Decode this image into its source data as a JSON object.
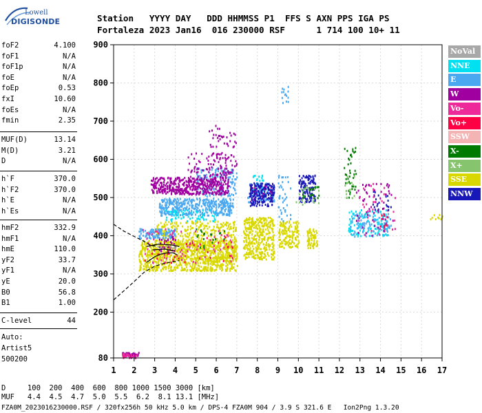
{
  "logo": {
    "line1": "Lowell",
    "line2": "DIGISONDE"
  },
  "header": {
    "columns": "Station   YYYY DAY   DDD HHMMSS P1  FFS S AXN PPS IGA PS",
    "values": "Fortaleza 2023 Jan16  016 230000 RSF      1 714 100 10+ 11"
  },
  "params_group1": [
    {
      "label": "foF2",
      "value": "4.100"
    },
    {
      "label": "foF1",
      "value": "N/A"
    },
    {
      "label": "foF1p",
      "value": "N/A"
    },
    {
      "label": "foE",
      "value": "N/A"
    },
    {
      "label": "foEp",
      "value": "0.53"
    },
    {
      "label": "fxI",
      "value": "10.60"
    },
    {
      "label": "foEs",
      "value": "N/A"
    },
    {
      "label": "fmin",
      "value": "2.35"
    }
  ],
  "params_group2": [
    {
      "label": "MUF(D)",
      "value": "13.14"
    },
    {
      "label": "M(D)",
      "value": "3.21"
    },
    {
      "label": "D",
      "value": "N/A"
    }
  ],
  "params_group3": [
    {
      "label": "h`F",
      "value": "370.0"
    },
    {
      "label": "h`F2",
      "value": "370.0"
    },
    {
      "label": "h`E",
      "value": "N/A"
    },
    {
      "label": "h`Es",
      "value": "N/A"
    }
  ],
  "params_group4": [
    {
      "label": "hmF2",
      "value": "332.9"
    },
    {
      "label": "hmF1",
      "value": "N/A"
    },
    {
      "label": "hmE",
      "value": "110.0"
    },
    {
      "label": "yF2",
      "value": "33.7"
    },
    {
      "label": "yF1",
      "value": "N/A"
    },
    {
      "label": "yE",
      "value": "20.0"
    },
    {
      "label": "B0",
      "value": "56.8"
    },
    {
      "label": "B1",
      "value": "1.00"
    }
  ],
  "params_group5": [
    {
      "label": "C-level",
      "value": "44"
    }
  ],
  "auto": {
    "line1": "Auto:",
    "line2": "Artist5",
    "line3": "500200"
  },
  "legend": [
    {
      "label": "NoVal",
      "color": "#a8a8a8"
    },
    {
      "label": "NNE",
      "color": "#00e0f0"
    },
    {
      "label": "E",
      "color": "#4aa8f0"
    },
    {
      "label": "W",
      "color": "#a000a0"
    },
    {
      "label": "Vo-",
      "color": "#ee2a9a"
    },
    {
      "label": "Vo+",
      "color": "#ff0044"
    },
    {
      "label": "SSW",
      "color": "#f4b4b4"
    },
    {
      "label": "X-",
      "color": "#007a00"
    },
    {
      "label": "X+",
      "color": "#86c46e"
    },
    {
      "label": "SSE",
      "color": "#d8d800"
    },
    {
      "label": "NNW",
      "color": "#1818b8"
    }
  ],
  "legend_text_colors": [
    "#ffffff",
    "#ffffff",
    "#ffffff",
    "#ffffff",
    "#ffffff",
    "#ffffff",
    "#ffffff",
    "#ffffff",
    "#ffffff",
    "#ffffff",
    "#ffffff"
  ],
  "footer": {
    "line1": "D     100  200  400  600  800 1000 1500 3000 [km]",
    "line2": "MUF   4.4  4.5  4.7  5.0  5.5  6.2  8.1 13.1 [MHz]",
    "line3": "FZA0M_2023016230000.RSF / 320fx256h 50 kHz 5.0 km / DPS-4 FZA0M 904 / 3.9 S 321.6 E   Ion2Png 1.3.20"
  },
  "chart_data": {
    "type": "scatter",
    "title": "",
    "xlabel": "",
    "ylabel": "",
    "xlim": [
      1,
      17
    ],
    "ylim": [
      80,
      900
    ],
    "x_ticks": [
      "1",
      "2",
      "3",
      "4",
      "5",
      "6",
      "7",
      "8",
      "9",
      "10",
      "11",
      "12",
      "13",
      "14",
      "15",
      "16",
      "17"
    ],
    "y_ticks": [
      "80",
      "200",
      "300",
      "400",
      "500",
      "600",
      "700",
      "800",
      "900"
    ],
    "x_tick_values": [
      1,
      2,
      3,
      4,
      5,
      6,
      7,
      8,
      9,
      10,
      11,
      12,
      13,
      14,
      15,
      16,
      17
    ],
    "y_tick_values": [
      80,
      200,
      300,
      400,
      500,
      600,
      700,
      800,
      900
    ],
    "grid": "dashed light gray",
    "legend_placement": "right",
    "series": [
      {
        "name": "SSE",
        "color": "#d8d800",
        "clusters": [
          {
            "x": [
              2.2,
              7.0
            ],
            "y": [
              310,
              390
            ],
            "n": 900
          },
          {
            "x": [
              3.0,
              7.0
            ],
            "y": [
              340,
              440
            ],
            "n": 450
          },
          {
            "x": [
              7.3,
              8.8
            ],
            "y": [
              340,
              450
            ],
            "n": 380
          },
          {
            "x": [
              9.0,
              10.0
            ],
            "y": [
              370,
              440
            ],
            "n": 150
          },
          {
            "x": [
              10.4,
              10.9
            ],
            "y": [
              370,
              420
            ],
            "n": 70
          },
          {
            "x": [
              16.4,
              17.0
            ],
            "y": [
              445,
              460
            ],
            "n": 10
          }
        ]
      },
      {
        "name": "E",
        "color": "#4aa8f0",
        "clusters": [
          {
            "x": [
              3.2,
              6.8
            ],
            "y": [
              455,
              500
            ],
            "n": 420
          },
          {
            "x": [
              2.2,
              4.0
            ],
            "y": [
              395,
              420
            ],
            "n": 110
          },
          {
            "x": [
              5.0,
              7.0
            ],
            "y": [
              505,
              580
            ],
            "n": 160
          },
          {
            "x": [
              7.5,
              8.8
            ],
            "y": [
              490,
              540
            ],
            "n": 90
          },
          {
            "x": [
              9.0,
              9.6
            ],
            "y": [
              440,
              560
            ],
            "n": 40
          },
          {
            "x": [
              12.5,
              14.5
            ],
            "y": [
              400,
              460
            ],
            "n": 120
          },
          {
            "x": [
              9.1,
              9.5
            ],
            "y": [
              740,
              800
            ],
            "n": 14
          }
        ]
      },
      {
        "name": "NNE",
        "color": "#00e0f0",
        "clusters": [
          {
            "x": [
              12.4,
              14.3
            ],
            "y": [
              400,
              470
            ],
            "n": 90
          },
          {
            "x": [
              3.5,
              6.0
            ],
            "y": [
              440,
              470
            ],
            "n": 60
          },
          {
            "x": [
              7.7,
              8.3
            ],
            "y": [
              520,
              560
            ],
            "n": 20
          }
        ]
      },
      {
        "name": "W",
        "color": "#a000a0",
        "clusters": [
          {
            "x": [
              2.8,
              6.6
            ],
            "y": [
              510,
              555
            ],
            "n": 430
          },
          {
            "x": [
              4.6,
              6.6
            ],
            "y": [
              530,
              620
            ],
            "n": 100
          },
          {
            "x": [
              5.5,
              7.0
            ],
            "y": [
              560,
              690
            ],
            "n": 70
          },
          {
            "x": [
              1.4,
              2.2
            ],
            "y": [
              82,
              96
            ],
            "n": 50
          },
          {
            "x": [
              7.6,
              8.7
            ],
            "y": [
              490,
              540
            ],
            "n": 40
          },
          {
            "x": [
              12.8,
              14.6
            ],
            "y": [
              400,
              540
            ],
            "n": 60
          },
          {
            "x": [
              3.0,
              4.0
            ],
            "y": [
              360,
              400
            ],
            "n": 30
          }
        ]
      },
      {
        "name": "NNW",
        "color": "#1818b8",
        "clusters": [
          {
            "x": [
              7.6,
              8.8
            ],
            "y": [
              480,
              540
            ],
            "n": 160
          },
          {
            "x": [
              10.0,
              10.8
            ],
            "y": [
              490,
              560
            ],
            "n": 120
          },
          {
            "x": [
              13.6,
              14.5
            ],
            "y": [
              470,
              520
            ],
            "n": 20
          }
        ]
      },
      {
        "name": "Vo-",
        "color": "#ee2a9a",
        "clusters": [
          {
            "x": [
              2.4,
              6.8
            ],
            "y": [
              330,
              420
            ],
            "n": 70
          },
          {
            "x": [
              1.4,
              2.2
            ],
            "y": [
              82,
              94
            ],
            "n": 25
          },
          {
            "x": [
              12.9,
              14.7
            ],
            "y": [
              400,
              540
            ],
            "n": 30
          }
        ]
      },
      {
        "name": "Vo+",
        "color": "#ff0044",
        "clusters": [
          {
            "x": [
              2.5,
              6.8
            ],
            "y": [
              330,
              400
            ],
            "n": 30
          },
          {
            "x": [
              13.8,
              14.6
            ],
            "y": [
              420,
              460
            ],
            "n": 10
          }
        ]
      },
      {
        "name": "X-",
        "color": "#007a00",
        "clusters": [
          {
            "x": [
              12.2,
              12.8
            ],
            "y": [
              500,
              640
            ],
            "n": 40
          },
          {
            "x": [
              10.2,
              11.0
            ],
            "y": [
              500,
              530
            ],
            "n": 20
          },
          {
            "x": [
              5.0,
              6.5
            ],
            "y": [
              370,
              420
            ],
            "n": 20
          }
        ]
      },
      {
        "name": "X+",
        "color": "#86c46e",
        "clusters": [
          {
            "x": [
              9.8,
              11.0
            ],
            "y": [
              480,
              530
            ],
            "n": 20
          },
          {
            "x": [
              12.2,
              12.8
            ],
            "y": [
              500,
              560
            ],
            "n": 15
          }
        ]
      },
      {
        "name": "NoVal",
        "color": "#a8a8a8",
        "clusters": [
          {
            "x": [
              3.0,
              4.0
            ],
            "y": [
              370,
              380
            ],
            "n": 10
          }
        ]
      }
    ],
    "profile_curves": [
      {
        "style": "dashed",
        "points": [
          [
            1.0,
            232
          ],
          [
            1.8,
            270
          ],
          [
            2.5,
            305
          ],
          [
            3.0,
            320
          ],
          [
            3.5,
            328
          ],
          [
            4.2,
            335
          ]
        ]
      },
      {
        "style": "dashed",
        "points": [
          [
            1.0,
            430
          ],
          [
            1.5,
            412
          ],
          [
            2.0,
            398
          ],
          [
            2.5,
            385
          ],
          [
            2.8,
            375
          ],
          [
            3.1,
            372
          ]
        ]
      },
      {
        "style": "solid",
        "points": [
          [
            2.6,
            330
          ],
          [
            3.0,
            345
          ],
          [
            3.3,
            352
          ],
          [
            3.6,
            355
          ],
          [
            3.9,
            355
          ],
          [
            4.1,
            350
          ]
        ]
      },
      {
        "style": "solid",
        "points": [
          [
            2.6,
            372
          ],
          [
            3.2,
            378
          ],
          [
            3.8,
            376
          ],
          [
            4.2,
            372
          ]
        ]
      },
      {
        "style": "solid",
        "points": [
          [
            2.9,
            363
          ],
          [
            3.5,
            365
          ],
          [
            4.0,
            360
          ]
        ]
      }
    ]
  }
}
